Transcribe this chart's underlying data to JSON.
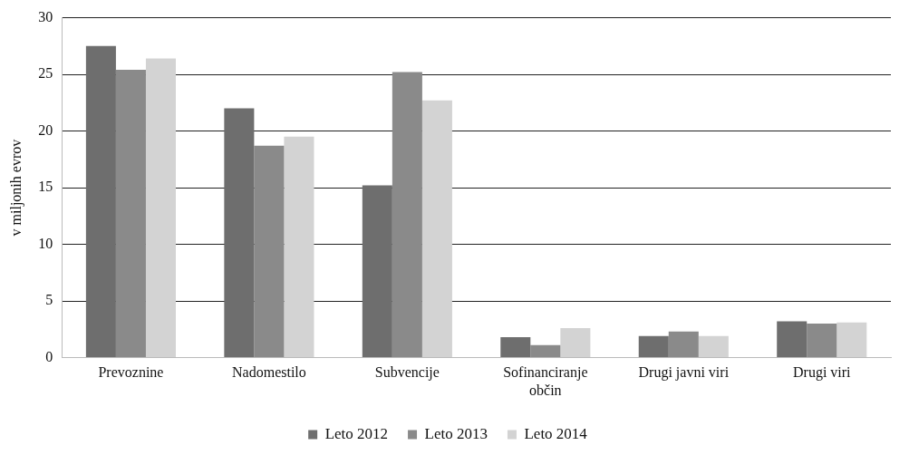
{
  "chart_data": {
    "type": "bar",
    "ylabel": "v miljonih evrov",
    "categories": [
      "Prevoznine",
      "Nadomestilo",
      "Subvencije",
      "Sofinanciranje občin",
      "Drugi javni viri",
      "Drugi viri"
    ],
    "series": [
      {
        "name": "Leto 2012",
        "color": "#6e6e6e",
        "values": [
          27.5,
          22.0,
          15.2,
          1.8,
          1.9,
          3.2
        ]
      },
      {
        "name": "Leto 2013",
        "color": "#8a8a8a",
        "values": [
          25.4,
          18.7,
          25.2,
          1.1,
          2.3,
          3.0
        ]
      },
      {
        "name": "Leto 2014",
        "color": "#d3d3d3",
        "values": [
          26.4,
          19.5,
          22.7,
          2.6,
          1.9,
          3.1
        ]
      }
    ],
    "ylim": [
      0,
      30
    ],
    "yticks": [
      0,
      5,
      10,
      15,
      20,
      25,
      30
    ],
    "grid": "y",
    "legend": "bottom"
  }
}
